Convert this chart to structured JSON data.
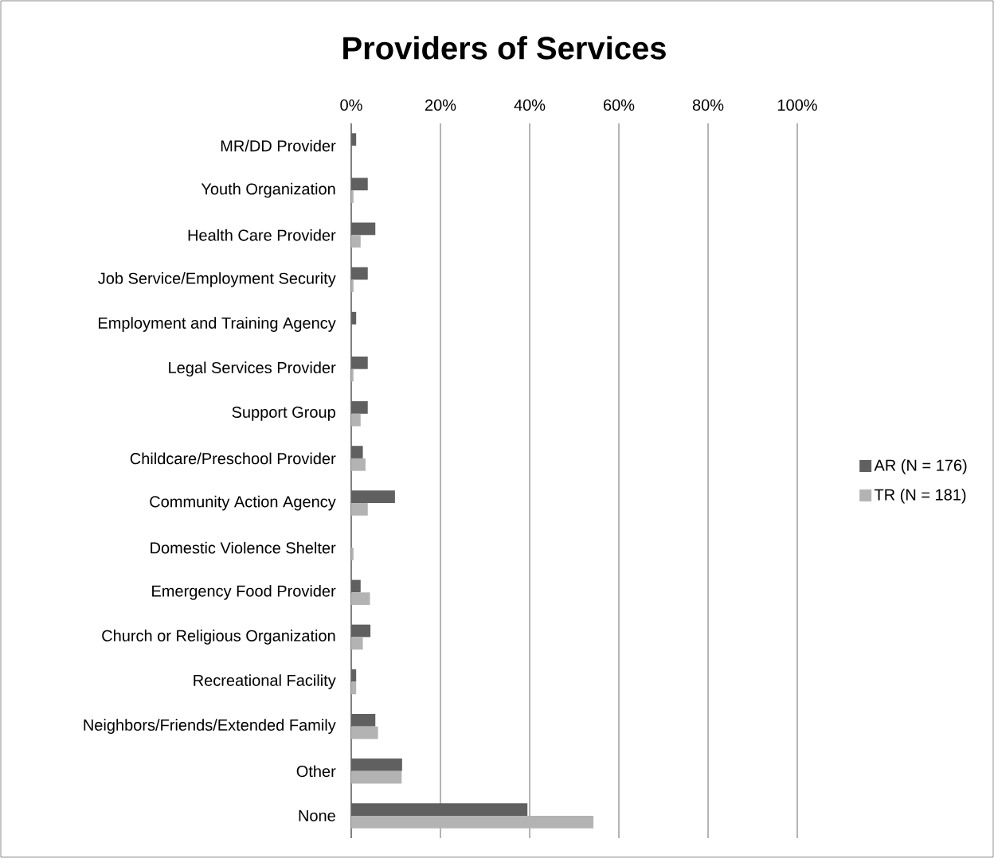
{
  "chart_data": {
    "type": "bar",
    "orientation": "horizontal",
    "title": "Providers of Services",
    "categories": [
      "MR/DD Provider",
      "Youth Organization",
      "Health Care Provider",
      "Job Service/Employment Security",
      "Employment and Training Agency",
      "Legal Services Provider",
      "Support Group",
      "Childcare/Preschool Provider",
      "Community Action Agency",
      "Domestic Violence Shelter",
      "Emergency Food Provider",
      "Church or Religious Organization",
      "Recreational Facility",
      "Neighbors/Friends/Extended Family",
      "Other",
      "None"
    ],
    "series": [
      {
        "name": "AR (N = 176)",
        "color": "#606060",
        "values": [
          1.1,
          3.7,
          5.4,
          3.7,
          1.1,
          3.7,
          3.7,
          2.6,
          9.8,
          0,
          2.1,
          4.3,
          1.1,
          5.4,
          11.4,
          39.5
        ]
      },
      {
        "name": "TR (N = 181)",
        "color": "#b3b3b3",
        "values": [
          0,
          0.5,
          2.1,
          0.5,
          0,
          0.5,
          2.1,
          3.2,
          3.7,
          0.5,
          4.2,
          2.6,
          1.1,
          6.0,
          11.3,
          54.3
        ]
      }
    ],
    "xlim": [
      0,
      100
    ],
    "xticks": [
      {
        "value": 0,
        "label": "0%"
      },
      {
        "value": 20,
        "label": "20%"
      },
      {
        "value": 40,
        "label": "40%"
      },
      {
        "value": 60,
        "label": "60%"
      },
      {
        "value": 80,
        "label": "80%"
      },
      {
        "value": 100,
        "label": "100%"
      }
    ],
    "grid": "x",
    "legend": "right"
  }
}
